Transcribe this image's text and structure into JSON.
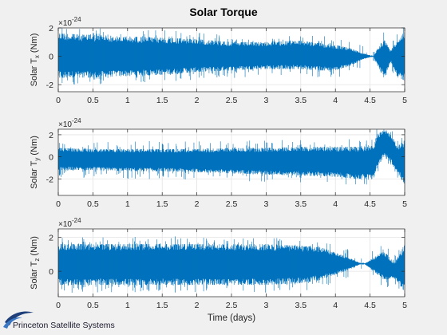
{
  "figure": {
    "title": "Solar Torque",
    "background_color": "#f0f0f0",
    "line_color": "#0072bd",
    "logo_text": "Princeton Satellite Systems"
  },
  "chart_data": [
    {
      "type": "line",
      "title": "Solar Torque",
      "xlabel": "",
      "ylabel": "Solar T_x (Nm)",
      "ylabel_main": "Solar T",
      "ylabel_sub": "x",
      "ylabel_unit": " (Nm)",
      "exponent_label": "×10",
      "exponent_power": "-24",
      "xlim": [
        0,
        5
      ],
      "ylim": [
        -2.5,
        2
      ],
      "xticks": [
        0,
        0.5,
        1,
        1.5,
        2,
        2.5,
        3,
        3.5,
        4,
        4.5,
        5
      ],
      "xtick_labels": [
        "0",
        "0.5",
        "1",
        "1.5",
        "2",
        "2.5",
        "3",
        "3.5",
        "4",
        "4.5",
        "5"
      ],
      "yticks": [
        -2,
        0,
        2
      ],
      "ytick_labels": [
        "-2",
        "0",
        "2"
      ],
      "grid": true,
      "series": [
        {
          "x": [
            0,
            0.5,
            1,
            1.5,
            2,
            2.5,
            3,
            3.5,
            3.8,
            4.0,
            4.2,
            4.4,
            4.55,
            4.6,
            4.7,
            4.8,
            4.9,
            5
          ],
          "y_upper": [
            1.6,
            1.5,
            1.4,
            1.3,
            1.2,
            1.0,
            1.0,
            1.1,
            0.9,
            0.8,
            0.6,
            0.2,
            0.0,
            0.5,
            1.2,
            0.4,
            1.3,
            1.7
          ],
          "y_lower": [
            -1.5,
            -1.5,
            -1.4,
            -1.3,
            -1.1,
            -1.0,
            -0.9,
            -0.9,
            -1.0,
            -1.0,
            -0.7,
            -0.2,
            0.0,
            -0.6,
            -1.5,
            -0.4,
            -1.5,
            -1.7
          ]
        }
      ]
    },
    {
      "type": "line",
      "xlabel": "",
      "ylabel": "Solar T_y (Nm)",
      "ylabel_main": "Solar T",
      "ylabel_sub": "y",
      "ylabel_unit": " (Nm)",
      "exponent_label": "×10",
      "exponent_power": "-24",
      "xlim": [
        0,
        5
      ],
      "ylim": [
        -3.5,
        2.5
      ],
      "xticks": [
        0,
        0.5,
        1,
        1.5,
        2,
        2.5,
        3,
        3.5,
        4,
        4.5,
        5
      ],
      "xtick_labels": [
        "0",
        "0.5",
        "1",
        "1.5",
        "2",
        "2.5",
        "3",
        "3.5",
        "4",
        "4.5",
        "5"
      ],
      "yticks": [
        -2,
        0,
        2
      ],
      "ytick_labels": [
        "-2",
        "0",
        "2"
      ],
      "grid": true,
      "series": [
        {
          "x": [
            0,
            0.5,
            1,
            1.5,
            2,
            2.5,
            3,
            3.5,
            4,
            4.3,
            4.55,
            4.6,
            4.7,
            4.8,
            4.9,
            5
          ],
          "y_upper": [
            0.8,
            0.7,
            0.7,
            0.7,
            0.7,
            0.8,
            0.8,
            0.9,
            0.9,
            0.9,
            1.0,
            2.0,
            2.5,
            2.0,
            1.0,
            1.5
          ],
          "y_lower": [
            -1.2,
            -1.2,
            -1.3,
            -1.3,
            -1.4,
            -1.5,
            -1.6,
            -1.7,
            -1.8,
            -2.0,
            -2.0,
            -1.0,
            0.0,
            -0.5,
            -1.5,
            -2.5
          ]
        }
      ]
    },
    {
      "type": "line",
      "xlabel": "Time (days)",
      "ylabel": "Solar T_z (Nm)",
      "ylabel_main": "Solar T",
      "ylabel_sub": "z",
      "ylabel_unit": " (Nm)",
      "exponent_label": "×10",
      "exponent_power": "-24",
      "xlim": [
        0,
        5
      ],
      "ylim": [
        -1.5,
        2.5
      ],
      "xticks": [
        0,
        0.5,
        1,
        1.5,
        2,
        2.5,
        3,
        3.5,
        4,
        4.5,
        5
      ],
      "xtick_labels": [
        "0",
        "0.5",
        "1",
        "1.5",
        "2",
        "2.5",
        "3",
        "3.5",
        "4",
        "4.5",
        "5"
      ],
      "yticks": [
        0,
        2
      ],
      "ytick_labels": [
        "0",
        "2"
      ],
      "grid": true,
      "series": [
        {
          "x": [
            0,
            0.5,
            1,
            1.5,
            2,
            2.5,
            3,
            3.5,
            3.8,
            4.0,
            4.2,
            4.4,
            4.55,
            4.7,
            4.85,
            5
          ],
          "y_upper": [
            1.6,
            1.6,
            1.6,
            1.6,
            1.6,
            1.6,
            1.6,
            1.5,
            1.4,
            1.1,
            0.8,
            0.4,
            0.8,
            1.2,
            0.5,
            1.6
          ],
          "y_lower": [
            -0.8,
            -0.8,
            -0.8,
            -0.8,
            -0.8,
            -0.8,
            -0.8,
            -0.7,
            -0.5,
            -0.2,
            0.1,
            0.5,
            0.0,
            -0.5,
            -0.4,
            -1.2
          ]
        }
      ]
    }
  ]
}
